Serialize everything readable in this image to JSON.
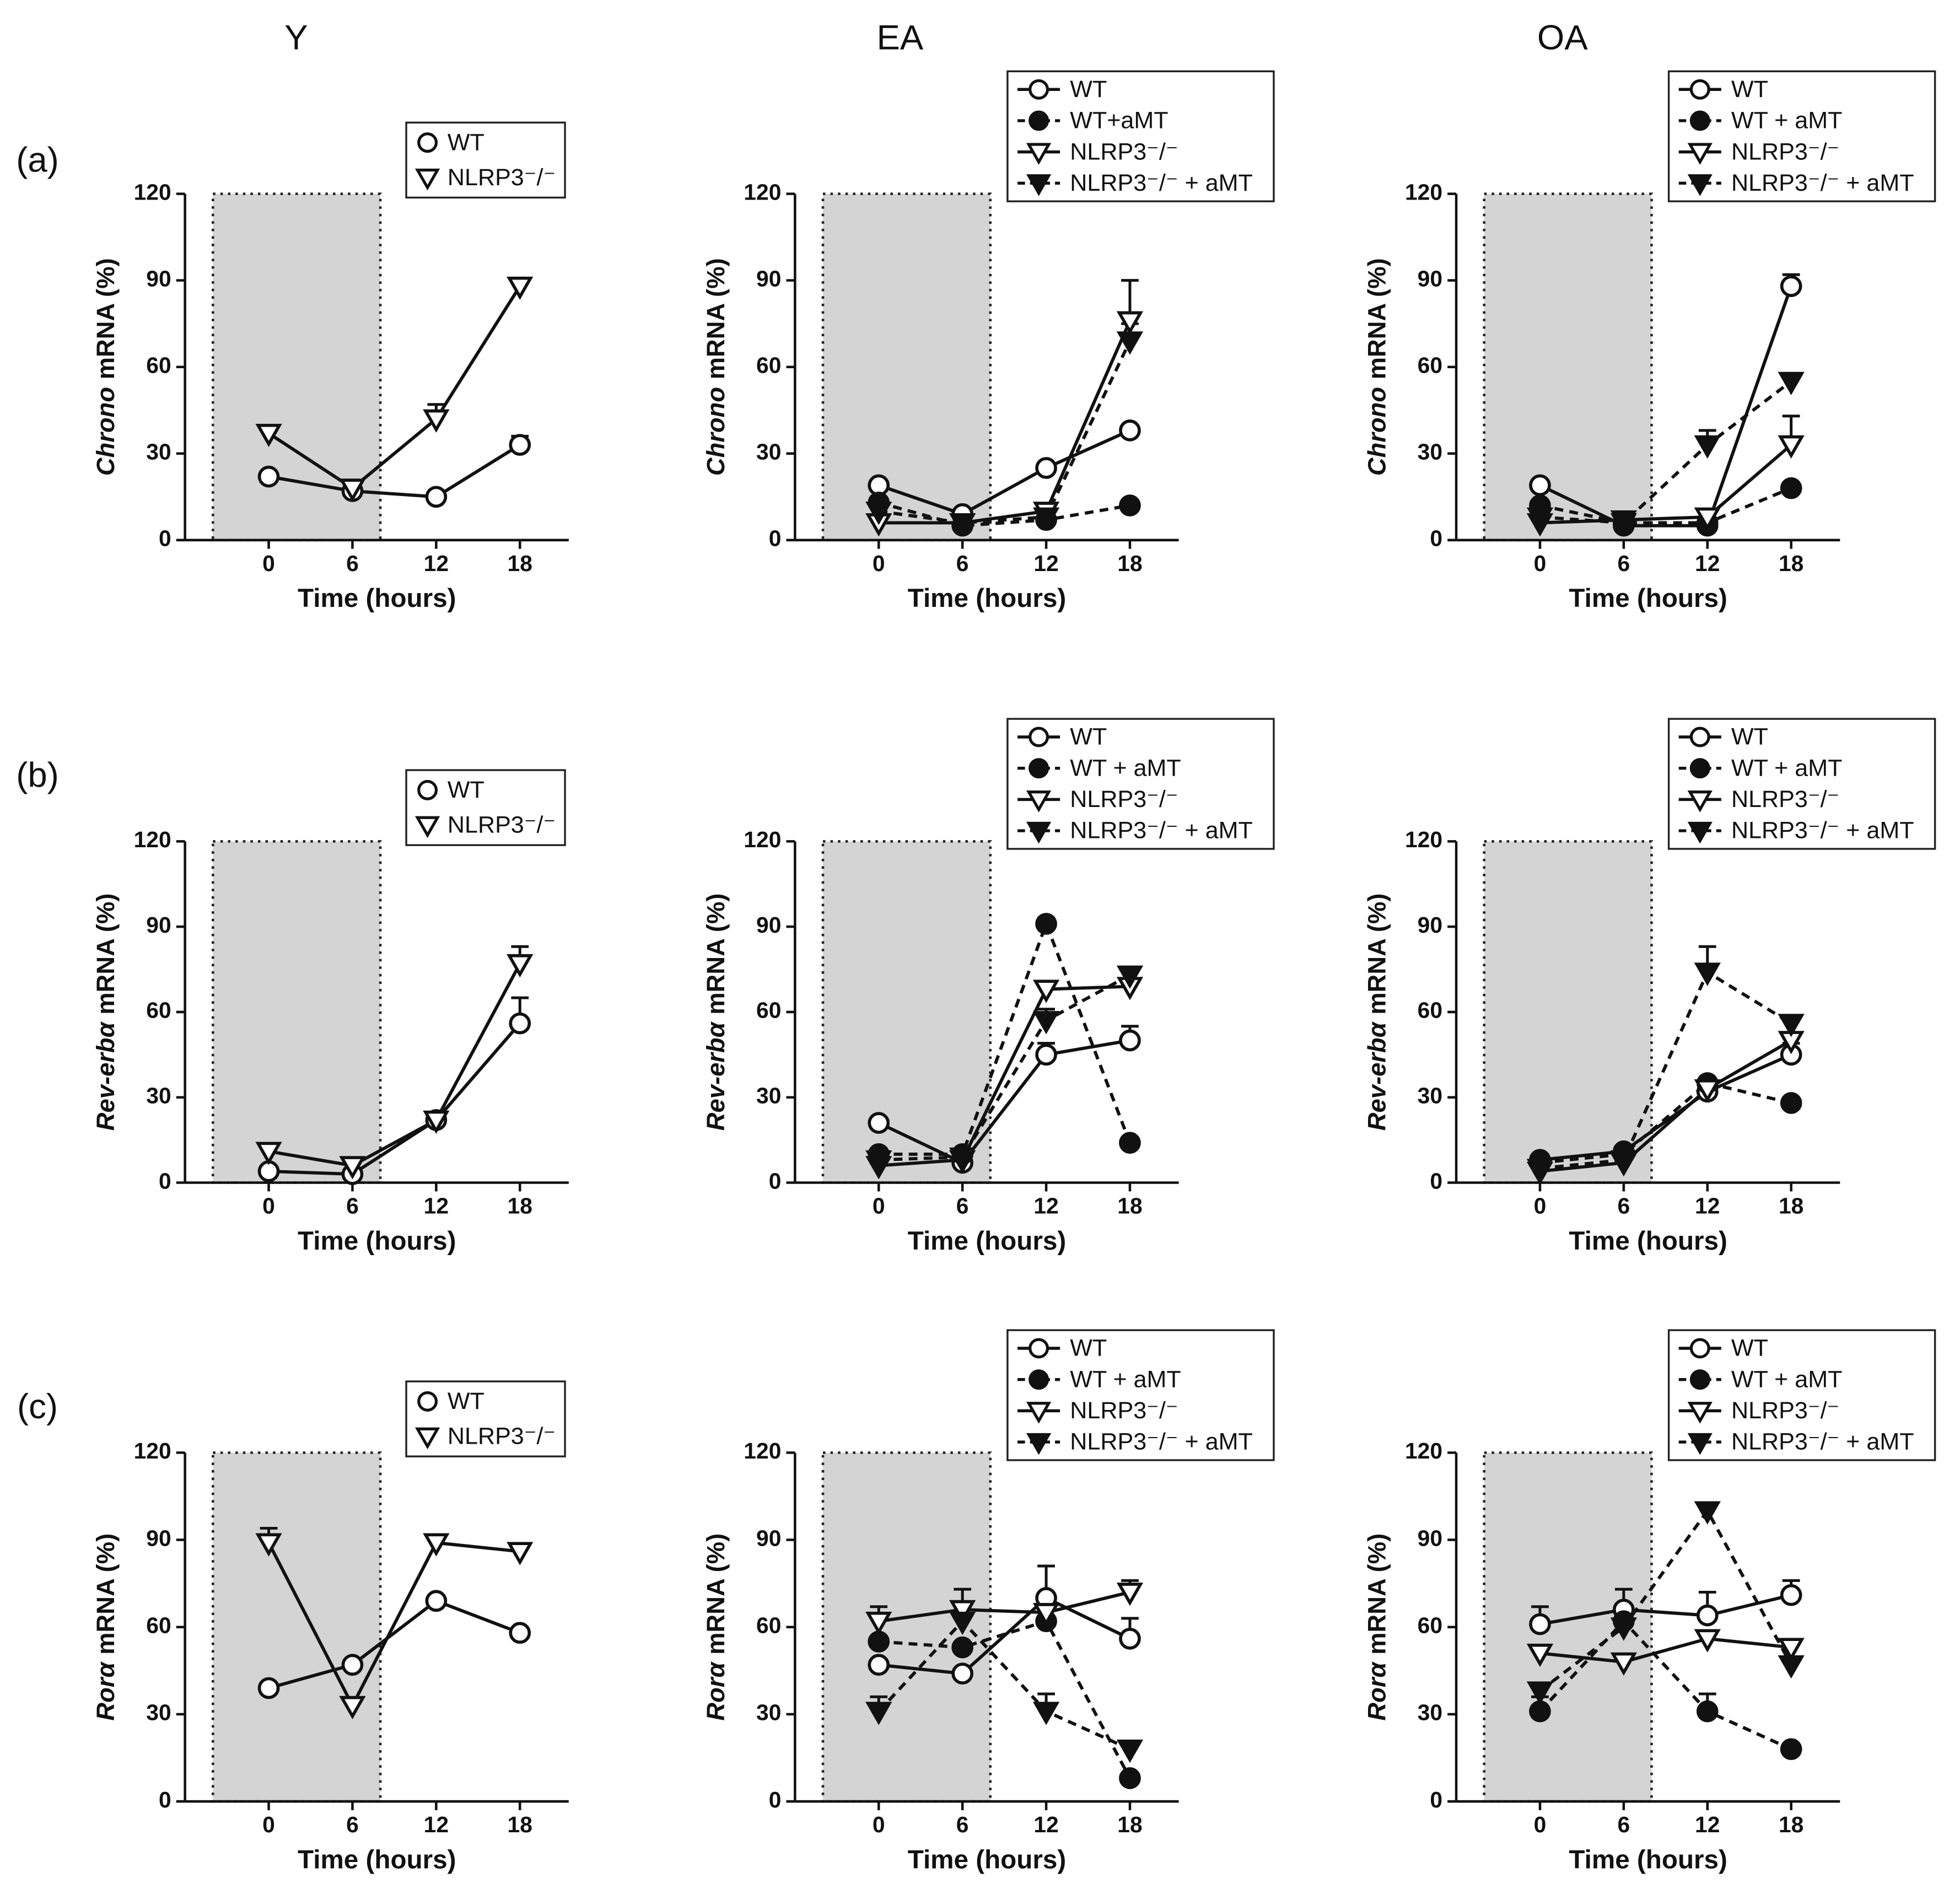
{
  "columns": [
    "Y",
    "EA",
    "OA"
  ],
  "rows": [
    "(a)",
    "(b)",
    "(c)"
  ],
  "chart_data": [
    {
      "type": "line",
      "ylabel": {
        "gene": "Chrono",
        "unit": "mRNA (%)"
      },
      "xlabel": "Time (hours)",
      "x": [
        0,
        6,
        12,
        18
      ],
      "xlim": [
        -6,
        21.5
      ],
      "xticks": [
        0,
        6,
        12,
        18
      ],
      "ylim": [
        0,
        120
      ],
      "yticks": [
        0,
        30,
        60,
        90,
        120
      ],
      "dark_phase": [
        -4,
        8
      ],
      "series": [
        {
          "name": "WT",
          "marker": "circle-open",
          "dash": false,
          "values": [
            22,
            17,
            15,
            33
          ],
          "errors": [
            null,
            null,
            null,
            3
          ]
        },
        {
          "name": "NLRP3⁻/⁻",
          "marker": "triangle-open",
          "dash": false,
          "values": [
            37,
            18,
            42,
            88
          ],
          "errors": [
            null,
            null,
            5,
            null
          ]
        }
      ]
    },
    {
      "type": "line",
      "ylabel": {
        "gene": "Chrono",
        "unit": "mRNA (%)"
      },
      "xlabel": "Time (hours)",
      "x": [
        0,
        6,
        12,
        18
      ],
      "xlim": [
        -6,
        21.5
      ],
      "xticks": [
        0,
        6,
        12,
        18
      ],
      "ylim": [
        0,
        120
      ],
      "yticks": [
        0,
        30,
        60,
        90,
        120
      ],
      "dark_phase": [
        -4,
        8
      ],
      "series": [
        {
          "name": "WT",
          "marker": "circle-open",
          "dash": false,
          "values": [
            19,
            9,
            25,
            38
          ],
          "errors": [
            null,
            null,
            null,
            null
          ]
        },
        {
          "name": "WT+aMT",
          "marker": "circle-filled",
          "dash": true,
          "values": [
            13,
            5,
            7,
            12
          ],
          "errors": [
            null,
            null,
            null,
            null
          ]
        },
        {
          "name": "NLRP3⁻/⁻",
          "marker": "triangle-open",
          "dash": false,
          "values": [
            6,
            6,
            10,
            76
          ],
          "errors": [
            null,
            null,
            null,
            14
          ]
        },
        {
          "name": "NLRP3⁻/⁻ + aMT",
          "marker": "triangle-filled",
          "dash": true,
          "values": [
            10,
            6,
            8,
            69
          ],
          "errors": [
            null,
            null,
            null,
            6
          ]
        }
      ]
    },
    {
      "type": "line",
      "ylabel": {
        "gene": "Chrono",
        "unit": "mRNA (%)"
      },
      "xlabel": "Time (hours)",
      "x": [
        0,
        6,
        12,
        18
      ],
      "xlim": [
        -6,
        21.5
      ],
      "xticks": [
        0,
        6,
        12,
        18
      ],
      "ylim": [
        0,
        120
      ],
      "yticks": [
        0,
        30,
        60,
        90,
        120
      ],
      "dark_phase": [
        -4,
        8
      ],
      "series": [
        {
          "name": "WT",
          "marker": "circle-open",
          "dash": false,
          "values": [
            19,
            5,
            5,
            88
          ],
          "errors": [
            null,
            null,
            null,
            4
          ]
        },
        {
          "name": "WT + aMT",
          "marker": "circle-filled",
          "dash": true,
          "values": [
            12,
            6,
            6,
            18
          ],
          "errors": [
            null,
            null,
            null,
            null
          ]
        },
        {
          "name": "NLRP3⁻/⁻",
          "marker": "triangle-open",
          "dash": false,
          "values": [
            6,
            7,
            8,
            33
          ],
          "errors": [
            null,
            null,
            null,
            10
          ]
        },
        {
          "name": "NLRP3⁻/⁻ + aMT",
          "marker": "triangle-filled",
          "dash": true,
          "values": [
            8,
            6,
            33,
            55
          ],
          "errors": [
            null,
            null,
            5,
            null
          ]
        }
      ]
    },
    {
      "type": "line",
      "ylabel": {
        "gene": "Rev-erbα",
        "unit": "mRNA (%)"
      },
      "xlabel": "Time (hours)",
      "x": [
        0,
        6,
        12,
        18
      ],
      "xlim": [
        -6,
        21.5
      ],
      "xticks": [
        0,
        6,
        12,
        18
      ],
      "ylim": [
        0,
        120
      ],
      "yticks": [
        0,
        30,
        60,
        90,
        120
      ],
      "dark_phase": [
        -4,
        8
      ],
      "series": [
        {
          "name": "WT",
          "marker": "circle-open",
          "dash": false,
          "values": [
            4,
            3,
            22,
            56
          ],
          "errors": [
            null,
            null,
            null,
            9
          ]
        },
        {
          "name": "NLRP3⁻/⁻",
          "marker": "triangle-open",
          "dash": false,
          "values": [
            11,
            6,
            22,
            77
          ],
          "errors": [
            null,
            null,
            null,
            6
          ]
        }
      ]
    },
    {
      "type": "line",
      "ylabel": {
        "gene": "Rev-erbα",
        "unit": "mRNA (%)"
      },
      "xlabel": "Time (hours)",
      "x": [
        0,
        6,
        12,
        18
      ],
      "xlim": [
        -6,
        21.5
      ],
      "xticks": [
        0,
        6,
        12,
        18
      ],
      "ylim": [
        0,
        120
      ],
      "yticks": [
        0,
        30,
        60,
        90,
        120
      ],
      "dark_phase": [
        -4,
        8
      ],
      "series": [
        {
          "name": "WT",
          "marker": "circle-open",
          "dash": false,
          "values": [
            21,
            7,
            45,
            50
          ],
          "errors": [
            null,
            null,
            4,
            5
          ]
        },
        {
          "name": "WT + aMT",
          "marker": "circle-filled",
          "dash": true,
          "values": [
            10,
            10,
            91,
            14
          ],
          "errors": [
            null,
            null,
            2,
            null
          ]
        },
        {
          "name": "NLRP3⁻/⁻",
          "marker": "triangle-open",
          "dash": false,
          "values": [
            6,
            8,
            68,
            69
          ],
          "errors": [
            null,
            null,
            null,
            null
          ]
        },
        {
          "name": "NLRP3⁻/⁻ + aMT",
          "marker": "triangle-filled",
          "dash": true,
          "values": [
            8,
            9,
            57,
            73
          ],
          "errors": [
            null,
            null,
            4,
            null
          ]
        }
      ]
    },
    {
      "type": "line",
      "ylabel": {
        "gene": "Rev-erbα",
        "unit": "mRNA (%)"
      },
      "xlabel": "Time (hours)",
      "x": [
        0,
        6,
        12,
        18
      ],
      "xlim": [
        -6,
        21.5
      ],
      "xticks": [
        0,
        6,
        12,
        18
      ],
      "ylim": [
        0,
        120
      ],
      "yticks": [
        0,
        30,
        60,
        90,
        120
      ],
      "dark_phase": [
        -4,
        8
      ],
      "series": [
        {
          "name": "WT",
          "marker": "circle-open",
          "dash": false,
          "values": [
            8,
            11,
            32,
            45
          ],
          "errors": [
            null,
            null,
            null,
            4
          ]
        },
        {
          "name": "WT + aMT",
          "marker": "circle-filled",
          "dash": true,
          "values": [
            7,
            10,
            35,
            28
          ],
          "errors": [
            null,
            null,
            null,
            null
          ]
        },
        {
          "name": "NLRP3⁻/⁻",
          "marker": "triangle-open",
          "dash": false,
          "values": [
            4,
            7,
            33,
            50
          ],
          "errors": [
            null,
            null,
            null,
            8
          ]
        },
        {
          "name": "NLRP3⁻/⁻ + aMT",
          "marker": "triangle-filled",
          "dash": true,
          "values": [
            5,
            8,
            74,
            56
          ],
          "errors": [
            null,
            null,
            9,
            null
          ]
        }
      ]
    },
    {
      "type": "line",
      "ylabel": {
        "gene": "Rorα",
        "unit": "mRNA (%)"
      },
      "xlabel": "Time (hours)",
      "x": [
        0,
        6,
        12,
        18
      ],
      "xlim": [
        -6,
        21.5
      ],
      "xticks": [
        0,
        6,
        12,
        18
      ],
      "ylim": [
        0,
        120
      ],
      "yticks": [
        0,
        30,
        60,
        90,
        120
      ],
      "dark_phase": [
        -4,
        8
      ],
      "series": [
        {
          "name": "WT",
          "marker": "circle-open",
          "dash": false,
          "values": [
            39,
            47,
            69,
            58
          ],
          "errors": [
            null,
            null,
            null,
            null
          ]
        },
        {
          "name": "NLRP3⁻/⁻",
          "marker": "triangle-open",
          "dash": false,
          "values": [
            89,
            33,
            89,
            86
          ],
          "errors": [
            5,
            null,
            null,
            null
          ]
        }
      ]
    },
    {
      "type": "line",
      "ylabel": {
        "gene": "Rorα",
        "unit": "mRNA (%)"
      },
      "xlabel": "Time (hours)",
      "x": [
        0,
        6,
        12,
        18
      ],
      "xlim": [
        -6,
        21.5
      ],
      "xticks": [
        0,
        6,
        12,
        18
      ],
      "ylim": [
        0,
        120
      ],
      "yticks": [
        0,
        30,
        60,
        90,
        120
      ],
      "dark_phase": [
        -4,
        8
      ],
      "series": [
        {
          "name": "WT",
          "marker": "circle-open",
          "dash": false,
          "values": [
            47,
            44,
            70,
            56
          ],
          "errors": [
            null,
            null,
            11,
            7
          ]
        },
        {
          "name": "WT + aMT",
          "marker": "circle-filled",
          "dash": true,
          "values": [
            55,
            53,
            62,
            8
          ],
          "errors": [
            null,
            null,
            7,
            null
          ]
        },
        {
          "name": "NLRP3⁻/⁻",
          "marker": "triangle-open",
          "dash": false,
          "values": [
            62,
            66,
            65,
            72
          ],
          "errors": [
            5,
            7,
            null,
            4
          ]
        },
        {
          "name": "NLRP3⁻/⁻ + aMT",
          "marker": "triangle-filled",
          "dash": true,
          "values": [
            31,
            62,
            31,
            18
          ],
          "errors": [
            5,
            null,
            6,
            null
          ]
        }
      ]
    },
    {
      "type": "line",
      "ylabel": {
        "gene": "Rorα",
        "unit": "mRNA (%)"
      },
      "xlabel": "Time (hours)",
      "x": [
        0,
        6,
        12,
        18
      ],
      "xlim": [
        -6,
        21.5
      ],
      "xticks": [
        0,
        6,
        12,
        18
      ],
      "ylim": [
        0,
        120
      ],
      "yticks": [
        0,
        30,
        60,
        90,
        120
      ],
      "dark_phase": [
        -4,
        8
      ],
      "series": [
        {
          "name": "WT",
          "marker": "circle-open",
          "dash": false,
          "values": [
            61,
            66,
            64,
            71
          ],
          "errors": [
            6,
            7,
            8,
            5
          ]
        },
        {
          "name": "WT + aMT",
          "marker": "circle-filled",
          "dash": true,
          "values": [
            31,
            62,
            31,
            18
          ],
          "errors": [
            5,
            null,
            6,
            null
          ]
        },
        {
          "name": "NLRP3⁻/⁻",
          "marker": "triangle-open",
          "dash": false,
          "values": [
            51,
            48,
            56,
            53
          ],
          "errors": [
            null,
            null,
            null,
            null
          ]
        },
        {
          "name": "NLRP3⁻/⁻ + aMT",
          "marker": "triangle-filled",
          "dash": true,
          "values": [
            38,
            60,
            100,
            47
          ],
          "errors": [
            null,
            null,
            null,
            null
          ]
        }
      ]
    }
  ]
}
